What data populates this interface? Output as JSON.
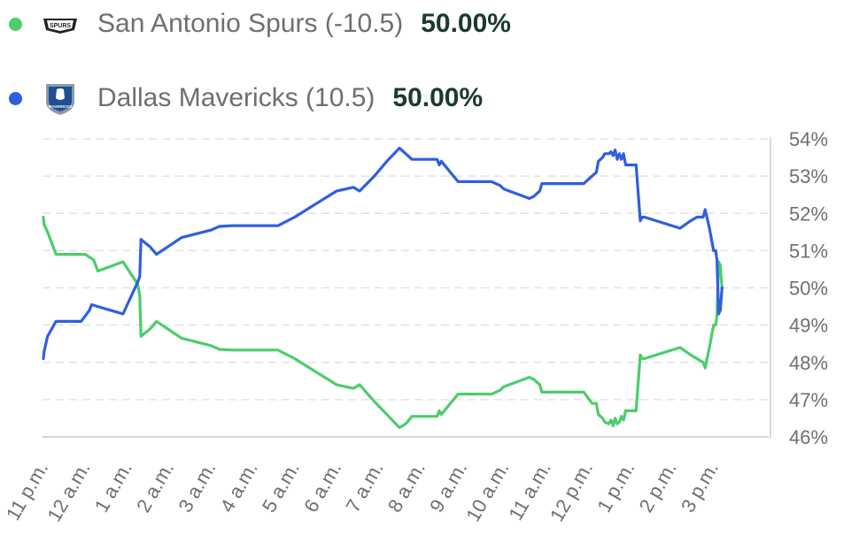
{
  "legend": [
    {
      "team": "San Antonio Spurs",
      "line": "(-10.5)",
      "label": "San Antonio Spurs (-10.5)",
      "pct": "50.00%",
      "color": "#4ccd6a",
      "logo_icon": "spurs-logo-icon",
      "logo_text": "SPURS"
    },
    {
      "team": "Dallas Mavericks",
      "line": "(10.5)",
      "label": "Dallas Mavericks (10.5)",
      "pct": "50.00%",
      "color": "#2f5fe0",
      "logo_icon": "mavericks-logo-icon",
      "logo_text": "MAVERICKS"
    }
  ],
  "chart_data": {
    "type": "line",
    "title": "",
    "xlabel": "",
    "ylabel": "",
    "ylim": [
      46,
      54
    ],
    "y_ticks": [
      "46%",
      "47%",
      "48%",
      "49%",
      "50%",
      "51%",
      "52%",
      "53%",
      "54%"
    ],
    "x_ticks": [
      {
        "label": "11 p.m.",
        "x": 0
      },
      {
        "label": "12 a.m.",
        "x": 1
      },
      {
        "label": "1 a.m.",
        "x": 2
      },
      {
        "label": "2 a.m.",
        "x": 3
      },
      {
        "label": "3 a.m.",
        "x": 4
      },
      {
        "label": "4 a.m.",
        "x": 5
      },
      {
        "label": "5 a.m.",
        "x": 6
      },
      {
        "label": "6 a.m.",
        "x": 7
      },
      {
        "label": "7 a.m.",
        "x": 8
      },
      {
        "label": "8 a.m.",
        "x": 9
      },
      {
        "label": "9 a.m.",
        "x": 10
      },
      {
        "label": "10 a.m.",
        "x": 11
      },
      {
        "label": "11 a.m.",
        "x": 12
      },
      {
        "label": "12 p.m.",
        "x": 13
      },
      {
        "label": "1 p.m.",
        "x": 14
      },
      {
        "label": "2 p.m.",
        "x": 15
      },
      {
        "label": "3 p.m.",
        "x": 16
      }
    ],
    "grid": true,
    "y_axis_position": "right",
    "series": [
      {
        "name": "Dallas Mavericks (10.5)",
        "color": "#2f5fe0",
        "points": [
          [
            0,
            48.1
          ],
          [
            0.02,
            48.3
          ],
          [
            0.1,
            48.7
          ],
          [
            0.3,
            49.1
          ],
          [
            0.9,
            49.1
          ],
          [
            1.1,
            49.4
          ],
          [
            1.15,
            49.55
          ],
          [
            1.3,
            49.5
          ],
          [
            1.9,
            49.3
          ],
          [
            2.25,
            50.15
          ],
          [
            2.3,
            50.3
          ],
          [
            2.33,
            51.3
          ],
          [
            2.55,
            51.1
          ],
          [
            2.7,
            50.9
          ],
          [
            3.1,
            51.2
          ],
          [
            3.3,
            51.35
          ],
          [
            4.0,
            51.55
          ],
          [
            4.2,
            51.65
          ],
          [
            4.5,
            51.67
          ],
          [
            5.6,
            51.67
          ],
          [
            6.0,
            51.9
          ],
          [
            6.5,
            52.25
          ],
          [
            7.0,
            52.6
          ],
          [
            7.4,
            52.7
          ],
          [
            7.55,
            52.6
          ],
          [
            7.9,
            53.0
          ],
          [
            8.2,
            53.4
          ],
          [
            8.5,
            53.75
          ],
          [
            8.65,
            53.6
          ],
          [
            8.8,
            53.45
          ],
          [
            9.4,
            53.45
          ],
          [
            9.45,
            53.3
          ],
          [
            9.5,
            53.4
          ],
          [
            9.9,
            52.85
          ],
          [
            10.7,
            52.85
          ],
          [
            10.9,
            52.75
          ],
          [
            11.0,
            52.65
          ],
          [
            11.6,
            52.4
          ],
          [
            11.7,
            52.45
          ],
          [
            11.85,
            52.6
          ],
          [
            11.9,
            52.8
          ],
          [
            12.9,
            52.8
          ],
          [
            13.1,
            53.0
          ],
          [
            13.2,
            53.1
          ],
          [
            13.25,
            53.4
          ],
          [
            13.35,
            53.5
          ],
          [
            13.4,
            53.6
          ],
          [
            13.5,
            53.6
          ],
          [
            13.55,
            53.65
          ],
          [
            13.6,
            53.55
          ],
          [
            13.65,
            53.7
          ],
          [
            13.7,
            53.45
          ],
          [
            13.75,
            53.6
          ],
          [
            13.8,
            53.45
          ],
          [
            13.85,
            53.6
          ],
          [
            13.9,
            53.3
          ],
          [
            14.1,
            53.3
          ],
          [
            14.15,
            53.3
          ],
          [
            14.25,
            51.8
          ],
          [
            14.3,
            51.9
          ],
          [
            14.35,
            51.9
          ],
          [
            15.2,
            51.6
          ],
          [
            15.45,
            51.8
          ],
          [
            15.6,
            51.9
          ],
          [
            15.75,
            51.9
          ],
          [
            15.8,
            52.1
          ],
          [
            15.9,
            51.6
          ],
          [
            16.0,
            51.0
          ],
          [
            16.05,
            51.0
          ],
          [
            16.08,
            50.75
          ],
          [
            16.12,
            49.3
          ],
          [
            16.16,
            49.4
          ],
          [
            16.2,
            50.0
          ]
        ]
      },
      {
        "name": "San Antonio Spurs (-10.5)",
        "color": "#4ccd6a",
        "points": [
          [
            0,
            51.9
          ],
          [
            0.02,
            51.7
          ],
          [
            0.1,
            51.5
          ],
          [
            0.3,
            50.9
          ],
          [
            1.0,
            50.9
          ],
          [
            1.2,
            50.75
          ],
          [
            1.3,
            50.45
          ],
          [
            1.9,
            50.7
          ],
          [
            2.25,
            50.1
          ],
          [
            2.3,
            49.8
          ],
          [
            2.33,
            48.7
          ],
          [
            2.55,
            48.9
          ],
          [
            2.7,
            49.1
          ],
          [
            3.1,
            48.8
          ],
          [
            3.3,
            48.65
          ],
          [
            4.0,
            48.45
          ],
          [
            4.2,
            48.35
          ],
          [
            4.5,
            48.33
          ],
          [
            5.6,
            48.33
          ],
          [
            6.0,
            48.1
          ],
          [
            6.5,
            47.75
          ],
          [
            7.0,
            47.4
          ],
          [
            7.4,
            47.3
          ],
          [
            7.55,
            47.4
          ],
          [
            7.9,
            46.95
          ],
          [
            8.2,
            46.6
          ],
          [
            8.5,
            46.25
          ],
          [
            8.65,
            46.35
          ],
          [
            8.8,
            46.55
          ],
          [
            9.4,
            46.55
          ],
          [
            9.45,
            46.7
          ],
          [
            9.5,
            46.6
          ],
          [
            9.9,
            47.15
          ],
          [
            10.7,
            47.15
          ],
          [
            10.9,
            47.25
          ],
          [
            11.0,
            47.35
          ],
          [
            11.6,
            47.6
          ],
          [
            11.7,
            47.55
          ],
          [
            11.85,
            47.4
          ],
          [
            11.9,
            47.2
          ],
          [
            12.9,
            47.2
          ],
          [
            13.1,
            46.9
          ],
          [
            13.2,
            46.9
          ],
          [
            13.25,
            46.6
          ],
          [
            13.35,
            46.5
          ],
          [
            13.4,
            46.4
          ],
          [
            13.5,
            46.35
          ],
          [
            13.55,
            46.45
          ],
          [
            13.6,
            46.3
          ],
          [
            13.65,
            46.5
          ],
          [
            13.7,
            46.35
          ],
          [
            13.75,
            46.4
          ],
          [
            13.8,
            46.55
          ],
          [
            13.85,
            46.45
          ],
          [
            13.9,
            46.7
          ],
          [
            14.1,
            46.7
          ],
          [
            14.15,
            46.7
          ],
          [
            14.25,
            48.2
          ],
          [
            14.3,
            48.1
          ],
          [
            14.35,
            48.1
          ],
          [
            15.2,
            48.4
          ],
          [
            15.45,
            48.2
          ],
          [
            15.6,
            48.1
          ],
          [
            15.75,
            48.0
          ],
          [
            15.8,
            47.85
          ],
          [
            15.9,
            48.4
          ],
          [
            16.0,
            49.0
          ],
          [
            16.05,
            49.0
          ],
          [
            16.08,
            49.25
          ],
          [
            16.12,
            50.7
          ],
          [
            16.16,
            50.6
          ],
          [
            16.2,
            50.0
          ]
        ]
      }
    ]
  }
}
